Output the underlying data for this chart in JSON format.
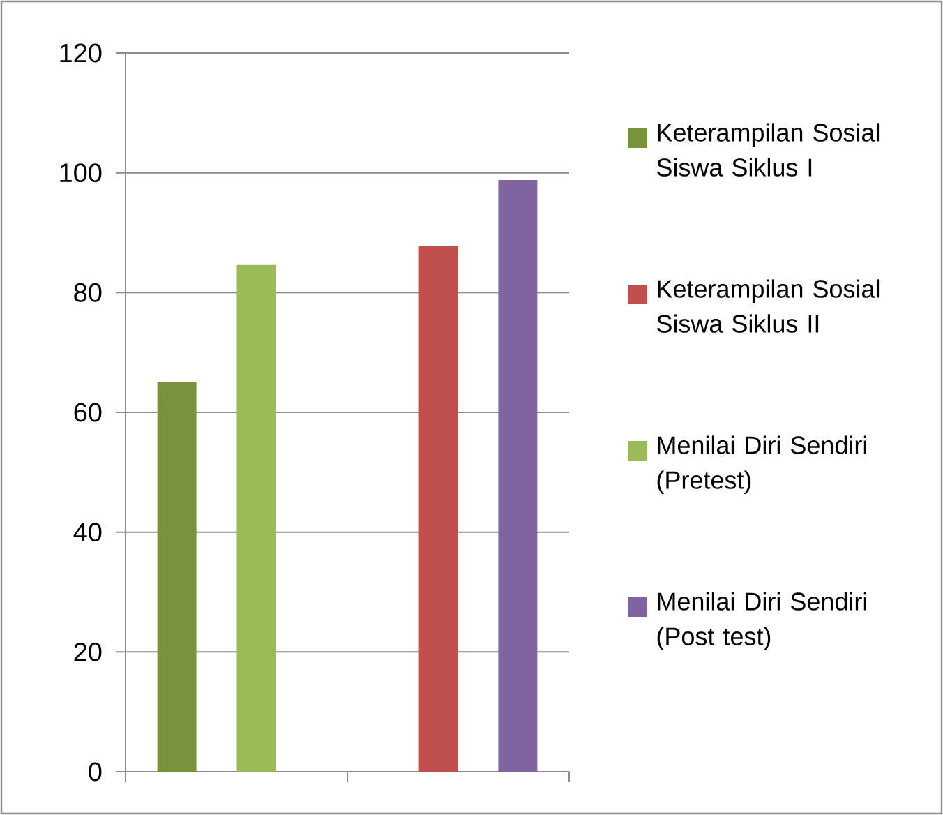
{
  "chart_data": {
    "type": "bar",
    "categories": [
      null,
      null
    ],
    "series": [
      {
        "name": "Keterampilan Sosial Siswa Siklus I",
        "color": "#77933c",
        "values": [
          65,
          null
        ]
      },
      {
        "name": "Keterampilan Sosial Siswa Siklus II",
        "color": "#c0504d",
        "values": [
          null,
          87.8
        ]
      },
      {
        "name": "Menilai Diri Sendiri (Pretest)",
        "color": "#9bbb59",
        "values": [
          84.6,
          null
        ]
      },
      {
        "name": "Menilai Diri Sendiri (Post test)",
        "color": "#8064a2",
        "values": [
          null,
          98.8
        ]
      }
    ],
    "ylim": [
      0,
      120
    ],
    "yticks": [
      0,
      20,
      40,
      60,
      80,
      100,
      120
    ],
    "grid": "y",
    "legend": "right",
    "tick_labels": "y"
  }
}
